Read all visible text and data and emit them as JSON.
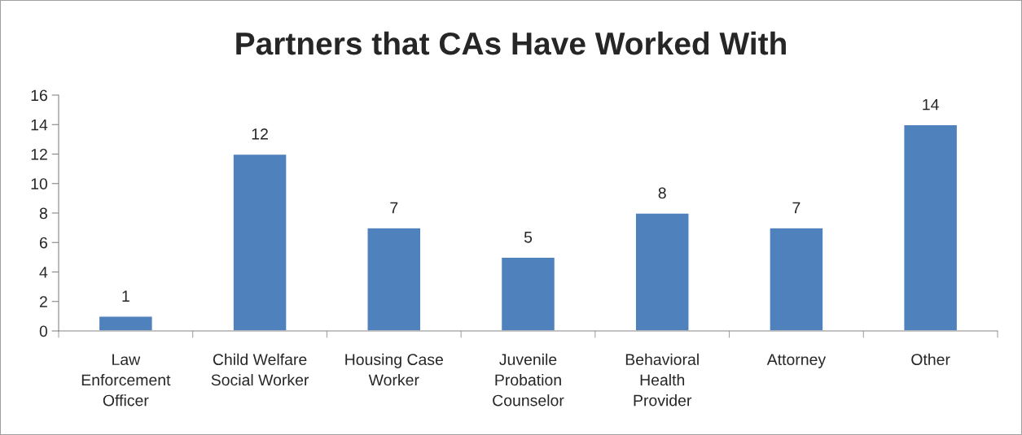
{
  "chart_data": {
    "type": "bar",
    "title": "Partners that CAs Have Worked With",
    "categories": [
      "Law\nEnforcement\nOfficer",
      "Child Welfare\nSocial Worker",
      "Housing Case\nWorker",
      "Juvenile\nProbation\nCounselor",
      "Behavioral\nHealth\nProvider",
      "Attorney",
      "Other"
    ],
    "values": [
      1,
      12,
      7,
      5,
      8,
      7,
      14
    ],
    "color": "#4f81bd",
    "ylim": [
      0,
      16
    ],
    "yticks": [
      0,
      2,
      4,
      6,
      8,
      10,
      12,
      14,
      16
    ],
    "grid": false,
    "legend": false,
    "data_labels": true
  }
}
